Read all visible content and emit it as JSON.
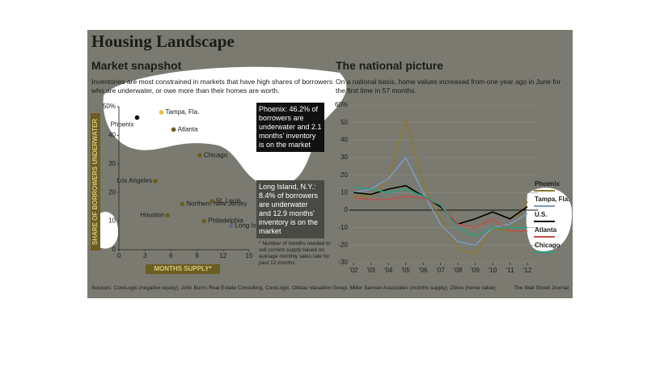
{
  "header": {
    "title": "Housing Landscape",
    "sources": "Sources: CoreLogic (negative equity); John Burns Real Estate Consulting, CoreLogic, Otteau Valuation Group, Miller Samuel Associates (months supply); Zillow (home value)",
    "credit": "The Wall Street Journal"
  },
  "chart_data": [
    {
      "type": "scatter",
      "title": "Market snapshot",
      "subtitle": "Inventories are most constrained in markets that have high shares of borrowers who are underwater, or owe more than their homes are worth.",
      "x_label": "MONTHS SUPPLY*",
      "y_label": "SHARE OF BORROWERS UNDERWATER",
      "annotations": [
        "Phoenix: 46.2% of borrowers are underwater and 2.1 months' inventory is on the market",
        "Long Island, N.Y.: 8.4% of borrowers are underwater and 12.9 months' inventory is on the market"
      ],
      "footnote": "* Number of months needed to sell current supply based on average monthly sales rate for past 12 months",
      "xlim": [
        0,
        15
      ],
      "xticks": [
        0,
        3,
        6,
        9,
        12,
        15
      ],
      "ylim": [
        0,
        50
      ],
      "yticks": [
        0,
        10,
        20,
        30,
        40,
        {
          "value": 50,
          "label": "50%"
        }
      ],
      "series": [
        {
          "name": "Phoenix",
          "color": "#000000",
          "x": [
            2.1
          ],
          "values": [
            46.2
          ]
        },
        {
          "name": "Tampa, Fla.",
          "color": "#e8c03a",
          "x": [
            4.9
          ],
          "values": [
            48
          ]
        },
        {
          "name": "Atlanta",
          "color": "#6b5e22",
          "x": [
            6.3
          ],
          "values": [
            42
          ]
        },
        {
          "name": "Chicago",
          "color": "#6b5e22",
          "x": [
            9.3
          ],
          "values": [
            33
          ]
        },
        {
          "name": "Los Angeles",
          "color": "#6b5e22",
          "x": [
            4.2
          ],
          "values": [
            24
          ]
        },
        {
          "name": "Northern New Jersey",
          "color": "#6b5e22",
          "x": [
            7.3
          ],
          "values": [
            16
          ]
        },
        {
          "name": "St. Louis",
          "color": "#6b5e22",
          "x": [
            10.7
          ],
          "values": [
            17
          ]
        },
        {
          "name": "Houston",
          "color": "#6b5e22",
          "x": [
            5.6
          ],
          "values": [
            12
          ]
        },
        {
          "name": "Philadelphia",
          "color": "#6b5e22",
          "x": [
            9.8
          ],
          "values": [
            10
          ]
        },
        {
          "name": "Long Island, N.Y.",
          "color": "#5e6a78",
          "x": [
            12.9
          ],
          "values": [
            8.4
          ]
        }
      ]
    },
    {
      "type": "line",
      "title": "The national picture",
      "subtitle": "On a national basis, home values increased from one year ago in June for the first time in 57 months.",
      "x": [
        2002,
        2003,
        2004,
        2005,
        2006,
        2007,
        2008,
        2009,
        2010,
        2011,
        2012
      ],
      "xlim": [
        2001.2,
        2012.6
      ],
      "xticks": [
        {
          "value": 2002,
          "label": "'02"
        },
        {
          "value": 2003,
          "label": "'03"
        },
        {
          "value": 2004,
          "label": "'04"
        },
        {
          "value": 2005,
          "label": "'05"
        },
        {
          "value": 2006,
          "label": "'06"
        },
        {
          "value": 2007,
          "label": "'07"
        },
        {
          "value": 2008,
          "label": "'08"
        },
        {
          "value": 2009,
          "label": "'09"
        },
        {
          "value": 2010,
          "label": "'10"
        },
        {
          "value": 2011,
          "label": "'11"
        },
        {
          "value": 2012,
          "label": "'12"
        }
      ],
      "ylim": [
        -30,
        60
      ],
      "yticks": [
        -30,
        -20,
        -10,
        0,
        10,
        20,
        30,
        40,
        50,
        {
          "value": 60,
          "label": "60%"
        }
      ],
      "series": [
        {
          "name": "Phoenix",
          "color": "#8a7a2e",
          "values": [
            8,
            8,
            18,
            52,
            15,
            -5,
            -22,
            -25,
            -10,
            -12,
            5
          ]
        },
        {
          "name": "Tampa, Fla.",
          "color": "#7b9abf",
          "values": [
            10,
            12,
            18,
            30,
            10,
            -8,
            -18,
            -20,
            -10,
            -8,
            -2
          ]
        },
        {
          "name": "U.S.",
          "color": "#000000",
          "values": [
            10,
            9,
            12,
            14,
            8,
            2,
            -8,
            -5,
            -1,
            -5,
            2
          ]
        },
        {
          "name": "Atlanta",
          "color": "#c0504d",
          "values": [
            7,
            6,
            6,
            8,
            7,
            3,
            -8,
            -10,
            -5,
            -12,
            -12
          ]
        },
        {
          "name": "Chicago",
          "color": "#2e9e7e",
          "values": [
            13,
            12,
            10,
            12,
            8,
            3,
            -10,
            -15,
            -10,
            -10,
            -10
          ]
        }
      ]
    }
  ]
}
